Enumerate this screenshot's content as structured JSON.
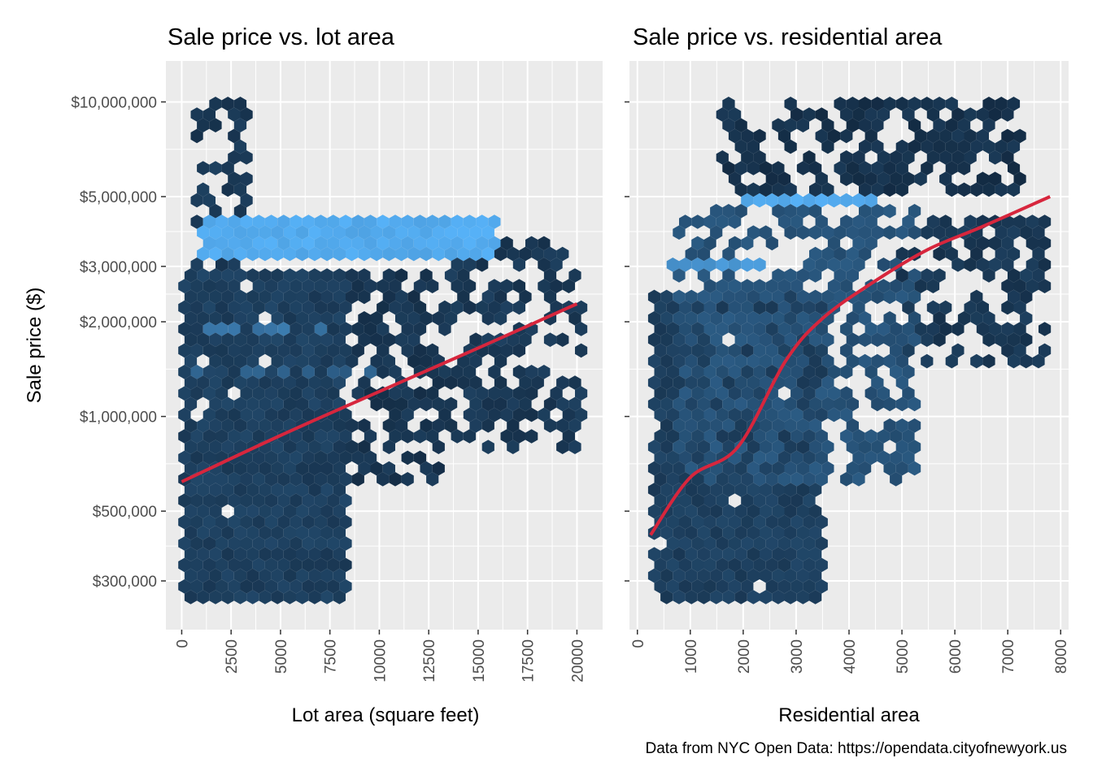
{
  "caption": "Data from NYC Open Data: https://opendata.cityofnewyork.us",
  "ylabel": "Sale price ($)",
  "colors": {
    "panel_bg": "#ebebeb",
    "grid": "#ffffff",
    "hex_dark": "#132b43",
    "hex_light": "#56b1f7",
    "fit_line": "#d7263d"
  },
  "chart_data": [
    {
      "type": "hexbin",
      "title": "Sale price vs. lot area",
      "xlabel": "Lot area (square feet)",
      "ylabel": "Sale price ($)",
      "y_scale": "log10",
      "xlim": [
        -800,
        21300
      ],
      "ylim": [
        210000,
        13500000
      ],
      "x_ticks": [
        0,
        2500,
        5000,
        7500,
        10000,
        12500,
        15000,
        17500,
        20000
      ],
      "x_tick_labels": [
        "0",
        "2500",
        "5000",
        "7500",
        "10000",
        "12500",
        "15000",
        "17500",
        "20000"
      ],
      "y_ticks": [
        300000,
        500000,
        1000000,
        2000000,
        3000000,
        5000000,
        10000000
      ],
      "y_tick_labels": [
        "$300,000",
        "$500,000",
        "$1,000,000",
        "$2,000,000",
        "$3,000,000",
        "$5,000,000",
        "$10,000,000"
      ],
      "fit": {
        "name": "smooth",
        "x": [
          0,
          5000,
          10000,
          15000,
          20000
        ],
        "y": [
          620000,
          870000,
          1200000,
          1650000,
          2280000
        ]
      },
      "hexbins": [
        {
          "region": "dense_core",
          "x_range": [
            0,
            8500
          ],
          "y_range": [
            260000,
            3000000
          ],
          "level": 0.15
        },
        {
          "region": "band_2m",
          "x_range": [
            400,
            7000
          ],
          "y_range": [
            1900000,
            2000000
          ],
          "level": 0.55
        },
        {
          "region": "band_1.3m",
          "x_range": [
            400,
            10500
          ],
          "y_range": [
            1300000,
            1400000
          ],
          "level": 0.4
        },
        {
          "region": "upper_cluster",
          "x_range": [
            500,
            3500
          ],
          "y_range": [
            3000000,
            10500000
          ],
          "level": 0.1
        },
        {
          "region": "mid_spread",
          "x_range": [
            8500,
            13500
          ],
          "y_range": [
            600000,
            3000000
          ],
          "level": 0.08
        },
        {
          "region": "sparse_tail",
          "x_range": [
            13500,
            20300
          ],
          "y_range": [
            750000,
            3800000
          ],
          "level": 0.1
        },
        {
          "region": "light_3.5m",
          "x_range": [
            1000,
            16000
          ],
          "y_range": [
            3300000,
            4300000
          ],
          "level": 0.95
        }
      ]
    },
    {
      "type": "hexbin",
      "title": "Sale price vs. residential area",
      "xlabel": "Residential area",
      "ylabel": "",
      "y_scale": "log10",
      "xlim": [
        -150,
        8150
      ],
      "ylim": [
        210000,
        13500000
      ],
      "x_ticks": [
        0,
        1000,
        2000,
        3000,
        4000,
        5000,
        6000,
        7000,
        8000
      ],
      "x_tick_labels": [
        "0",
        "1000",
        "2000",
        "3000",
        "4000",
        "5000",
        "6000",
        "7000",
        "8000"
      ],
      "y_ticks": [
        300000,
        500000,
        1000000,
        2000000,
        3000000,
        5000000,
        10000000
      ],
      "y_tick_labels": [
        "$300,000",
        "$500,000",
        "$1,000,000",
        "$2,000,000",
        "$3,000,000",
        "$5,000,000",
        "$10,000,000"
      ],
      "fit": {
        "name": "smooth",
        "x": [
          250,
          1000,
          1900,
          2800,
          3500,
          4500,
          5500,
          6500,
          7800
        ],
        "y": [
          420000,
          640000,
          800000,
          1500000,
          2050000,
          2700000,
          3400000,
          4000000,
          5000000
        ]
      },
      "hexbins": [
        {
          "region": "dense_core",
          "x_range": [
            300,
            3500
          ],
          "y_range": [
            260000,
            2500000
          ],
          "level": 0.15
        },
        {
          "region": "wedge",
          "x_range": [
            800,
            5300
          ],
          "y_range": [
            600000,
            4500000
          ],
          "level": 0.3
        },
        {
          "region": "light_5m_band",
          "x_range": [
            2000,
            4500
          ],
          "y_range": [
            4600000,
            5100000
          ],
          "level": 0.95
        },
        {
          "region": "light_3m_band",
          "x_range": [
            600,
            2300
          ],
          "y_range": [
            2900000,
            3100000
          ],
          "level": 0.8
        },
        {
          "region": "upper_sparse",
          "x_range": [
            1600,
            7300
          ],
          "y_range": [
            5000000,
            10500000
          ],
          "level": 0.05
        },
        {
          "region": "right_tail",
          "x_range": [
            5000,
            7800
          ],
          "y_range": [
            1400000,
            4300000
          ],
          "level": 0.1
        }
      ]
    }
  ]
}
